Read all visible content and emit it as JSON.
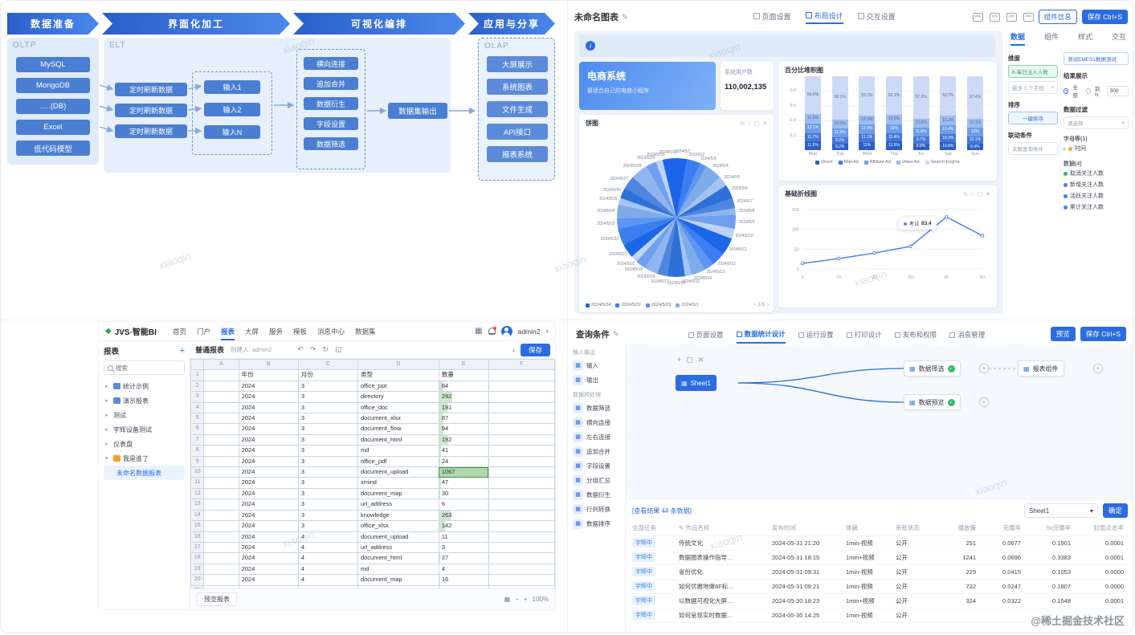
{
  "credit": "@稀土掘金技术社区",
  "watermark": "xiaoqin",
  "icons": {
    "edit": "✎",
    "arrow_r": "▸",
    "arrow_d": "▾",
    "plus": "+",
    "grid": "▦",
    "check": "✓",
    "close": "✕",
    "refresh": "↻",
    "download": "↓",
    "window": "▢",
    "minus": "−",
    "caret_d": "▾",
    "pg_l": "‹",
    "pg_r": "›",
    "undo": "↶",
    "redo": "↷",
    "expand": "◱",
    "link_plus": "+"
  },
  "colors": {
    "primary": "#2b6cdf",
    "stack": [
      "#2d5fc8",
      "#4377d8",
      "#6f9ce9",
      "#9bbcf2",
      "#cdd9f6"
    ],
    "pie": [
      "#1b66e8",
      "#3c7ef0",
      "#5d95f4",
      "#7face8",
      "#a5c4f5",
      "#2f70d8",
      "#4f86e0",
      "#8fb4f0",
      "#6ea0ee",
      "#bcd2f8"
    ]
  },
  "flow": {
    "stages": [
      "数据准备",
      "界面化加工",
      "可视化编排",
      "应用与分享"
    ],
    "oltp": {
      "title": "OLTP",
      "items": [
        "MySQL",
        "MongoDB",
        ".....(DB)",
        "Excel",
        "低代码模型"
      ]
    },
    "elt": {
      "title": "ELT",
      "refresh": [
        "定时刷新数据",
        "定时刷新数据",
        "定时刷新数据"
      ],
      "inputs": [
        "输入1",
        "输入2",
        "输入N"
      ],
      "ops": [
        "横向连接",
        "追加合并",
        "数据衍生",
        "字段设置",
        "数据筛选"
      ],
      "output": "数据集输出"
    },
    "olap": {
      "title": "OLAP",
      "items": [
        "大屏展示",
        "系统图表",
        "文件生成",
        "API接口",
        "报表系统"
      ]
    }
  },
  "designer": {
    "title": "未命名图表",
    "tabs": [
      {
        "label": "页面设置",
        "active": false
      },
      {
        "label": "布局设计",
        "active": true
      },
      {
        "label": "交互设置",
        "active": false
      }
    ],
    "info_btn": "组件信息",
    "save_btn": "保存 Ctrl+S",
    "shop": {
      "title": "电商系统",
      "subtitle": "最适合自己的电商小程序"
    },
    "users": {
      "label": "系统用户数",
      "value": "110,002,135"
    },
    "config": {
      "tabs": [
        {
          "label": "数据",
          "active": true
        },
        {
          "label": "组件",
          "active": false
        },
        {
          "label": "样式",
          "active": false
        },
        {
          "label": "交互",
          "active": false
        }
      ],
      "dataset": "测试EMES1数据测试",
      "dim_label": "维度",
      "dim_pill": "6-每日注入人数",
      "dim_hint": "最多 1 个字段",
      "sort_label": "排序",
      "sort_pill": "一键排序",
      "link_label": "联动条件",
      "link_box": "关联查询条件",
      "result_label": "结果展示",
      "opt_all": "全部",
      "opt_topn": "前N",
      "result_value": "500",
      "filter_label": "数据过滤",
      "filter_box": "请选择",
      "fields": [
        {
          "kind": "group",
          "label": "字母等(1)"
        },
        {
          "kind": "item",
          "label": "时间",
          "dot": "#f5a623",
          "arrow": true
        },
        {
          "kind": "group",
          "label": "数据(4)"
        },
        {
          "kind": "item",
          "label": "取消关注人数",
          "dot": "#34b96b"
        },
        {
          "kind": "item",
          "label": "新增关注人数",
          "dot": "#3b82f6"
        },
        {
          "kind": "item",
          "label": "活跃关注人数",
          "dot": "#3b82f6"
        },
        {
          "kind": "item",
          "label": "累计关注人数",
          "dot": "#3b82f6"
        }
      ]
    }
  },
  "chart_data": [
    {
      "type": "bar",
      "stacked": true,
      "title": "百分比堆积图",
      "categories": [
        "Mon",
        "Tue",
        "Wed",
        "Thu",
        "Fri",
        "Sat",
        "Sun"
      ],
      "series": [
        {
          "name": "Direct",
          "values": [
            11.5,
            8.2,
            11.0,
            11.5,
            8.8,
            10.8,
            8.4
          ]
        },
        {
          "name": "Mail Ad",
          "values": [
            11.7,
            9.2,
            11.1,
            11.4,
            9.7,
            10.9,
            10.1
          ]
        },
        {
          "name": "Affiliate Ad",
          "values": [
            13.1,
            11.9,
            12.4,
            12.0,
            11.8,
            12.4,
            12.0
          ]
        },
        {
          "name": "Video Ad",
          "values": [
            12.8,
            12.6,
            12.3,
            12.9,
            12.5,
            12.2,
            12.1
          ]
        },
        {
          "name": "Search Engine",
          "values": [
            50.9,
            58.1,
            53.2,
            52.2,
            57.2,
            53.7,
            57.4
          ]
        }
      ],
      "ylim": [
        0,
        1
      ],
      "yticks": [
        0.2,
        0.4,
        0.6,
        0.8
      ],
      "legend_position": "bottom"
    },
    {
      "type": "pie",
      "title": "饼图",
      "labels": [
        "2024/5/1",
        "2024/5/2",
        "2024/5/3",
        "2024/5/4",
        "2024/5/5",
        "2024/5/6",
        "2024/5/7",
        "2024/5/8",
        "2024/5/9",
        "2024/5/10",
        "2024/5/11",
        "2024/5/12",
        "2024/5/13",
        "2024/5/14",
        "2024/5/15",
        "2024/5/16",
        "2024/5/17",
        "2024/5/18",
        "2024/5/19",
        "2024/5/20",
        "2024/5/21",
        "2024/5/22",
        "2024/5/23",
        "2024/5/24",
        "2024/5/25",
        "2024/5/26",
        "2024/5/27",
        "2024/5/28",
        "2024/5/29",
        "2024/5/30",
        "2024/5/31"
      ],
      "values": [
        3,
        4,
        2,
        5,
        3,
        4,
        3,
        2,
        4,
        3,
        5,
        4,
        3,
        4,
        2,
        5,
        3,
        4,
        3,
        2,
        4,
        5,
        3,
        4,
        2,
        3,
        4,
        5,
        3,
        2,
        4
      ],
      "legend": [
        "2024/5/24",
        "2024/5/22",
        "2024/5/23",
        "2024/5/1"
      ],
      "page": "1/5"
    },
    {
      "type": "line",
      "title": "基础折线图",
      "x": [
        0,
        10,
        20,
        30,
        40,
        50
      ],
      "points": [
        [
          0,
          14
        ],
        [
          10,
          26
        ],
        [
          20,
          40
        ],
        [
          30,
          57
        ],
        [
          40,
          131
        ],
        [
          50,
          84
        ]
      ],
      "yticks": [
        0,
        50,
        100,
        150
      ],
      "ylim": [
        0,
        150
      ],
      "tooltip": {
        "name": "考试",
        "value": "83.4"
      }
    }
  ],
  "bi": {
    "logo": "JVS·智能BI",
    "nav": [
      "首页",
      "门户",
      "报表",
      "大屏",
      "服务",
      "模板",
      "消息中心",
      "数据集"
    ],
    "active_nav": "报表",
    "user": "admin2",
    "panel": {
      "title": "报表",
      "search": "搜索"
    },
    "tree": [
      {
        "label": "统计示例",
        "icon": "#5b8ad8",
        "arrow": true
      },
      {
        "label": "演示报表",
        "icon": "#5b8ad8",
        "arrow": true
      },
      {
        "label": "测试",
        "arrow": true
      },
      {
        "label": "宇辉设备测试",
        "arrow": true
      },
      {
        "label": "仪表盘",
        "arrow": true
      },
      {
        "label": "我是谁了",
        "icon": "#f0a22e",
        "arrow": true,
        "open": true
      },
      {
        "label": "未命名数据报表",
        "child": true,
        "selected": true
      }
    ],
    "toolbar": {
      "report": "普通报表",
      "creator": "创建人: admin2",
      "save": "保存"
    },
    "sheet": {
      "cols": [
        "A",
        "B",
        "C",
        "D",
        "E",
        "F"
      ],
      "header": [
        "",
        "年份",
        "月份",
        "类型",
        "数量",
        ""
      ],
      "max": 1067,
      "selected_row": 8,
      "rows": [
        [
          "2024",
          "3",
          "office_ppt",
          "84"
        ],
        [
          "2024",
          "3",
          "directory",
          "292"
        ],
        [
          "2024",
          "3",
          "office_doc",
          "191"
        ],
        [
          "2024",
          "3",
          "document_xlsx",
          "87"
        ],
        [
          "2024",
          "3",
          "document_flow",
          "94"
        ],
        [
          "2024",
          "3",
          "document_html",
          "192"
        ],
        [
          "2024",
          "3",
          "md",
          "41"
        ],
        [
          "2024",
          "3",
          "office_pdf",
          "24"
        ],
        [
          "2024",
          "3",
          "document_upload",
          "1067"
        ],
        [
          "2024",
          "3",
          "xmind",
          "47"
        ],
        [
          "2024",
          "3",
          "document_map",
          "30"
        ],
        [
          "2024",
          "3",
          "url_address",
          "6"
        ],
        [
          "2024",
          "3",
          "knowledge",
          "263"
        ],
        [
          "2024",
          "3",
          "office_xlsx",
          "142"
        ],
        [
          "2024",
          "4",
          "document_upload",
          "11"
        ],
        [
          "2024",
          "4",
          "url_address",
          "3"
        ],
        [
          "2024",
          "4",
          "document_html",
          "27"
        ],
        [
          "2024",
          "4",
          "md",
          "4"
        ],
        [
          "2024",
          "4",
          "document_map",
          "16"
        ],
        [
          "2024",
          "4",
          "",
          ""
        ]
      ]
    },
    "footer": {
      "tab": "预览报表",
      "zoom": "100%"
    }
  },
  "query": {
    "title": "查询条件",
    "tabs": [
      {
        "label": "页面设置",
        "active": false
      },
      {
        "label": "数据统计设计",
        "active": true
      },
      {
        "label": "运行设置",
        "active": false
      },
      {
        "label": "打印设计",
        "active": false
      },
      {
        "label": "发布和权限",
        "active": false
      },
      {
        "label": "消息管理",
        "active": false
      }
    ],
    "preview_btn": "预览",
    "save_btn": "保存 Ctrl+S",
    "sidebar": [
      {
        "title": "输入输出",
        "items": [
          "输入",
          "输出"
        ]
      },
      {
        "title": "数据预处理",
        "items": [
          "数据筛选",
          "横向连接",
          "左右连接",
          "追加合并",
          "字段设置",
          "分组汇总",
          "数据衍生",
          "行列转换",
          "数据排序"
        ]
      }
    ],
    "nodes": {
      "source": "Sheet1",
      "filter": "数据筛选",
      "component": "报表组件",
      "preview": "数据预览"
    },
    "result": {
      "info": "[查看结果 44 条数据]",
      "group_col": "全部任务",
      "tag": "宇辉中",
      "columns": [
        "作品名称",
        "发布时间",
        "体裁",
        "审批状态",
        "播放量",
        "完播率",
        "5s完播率",
        "封面点击率"
      ],
      "rows": [
        [
          "传统文化",
          "2024-05-31 21:20",
          "1min-视频",
          "公开",
          "251",
          "0.0677",
          "0.1901",
          "0.0001"
        ],
        [
          "数据图表操作指导…",
          "2024-05-31 18:15",
          "1min+视频",
          "公开",
          "1241",
          "0.0696",
          "0.3383",
          "0.0001"
        ],
        [
          "省份优化",
          "2024-05-31 09:31",
          "1min-视频",
          "公开",
          "229",
          "0.0415",
          "0.1053",
          "0.0000"
        ],
        [
          "如何优雅地做6F标…",
          "2024-05-31 09:21",
          "1min-视频",
          "公开",
          "732",
          "0.0247",
          "0.1807",
          "0.0000"
        ],
        [
          "以数据可视化大屏…",
          "2024-05-30 18:23",
          "1min+视频",
          "公开",
          "324",
          "0.0322",
          "0.1548",
          "0.0001"
        ],
        [
          "如何呈现实时数据…",
          "2024-05-30 14:25",
          "1min-视频",
          "公开",
          "",
          "",
          "",
          ""
        ]
      ],
      "select": "Sheet1",
      "confirm": "确定"
    }
  }
}
